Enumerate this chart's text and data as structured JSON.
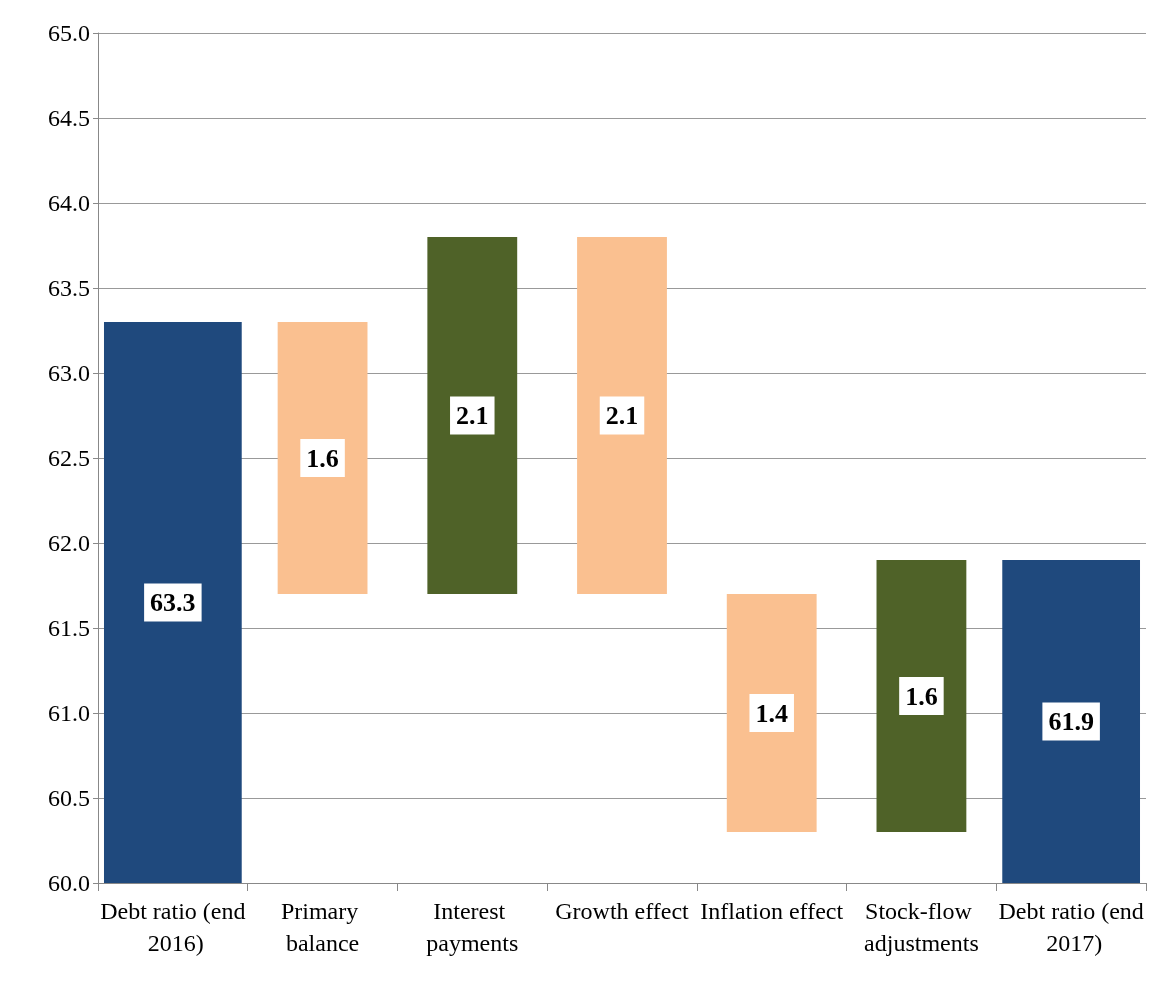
{
  "chart_data": {
    "type": "bar",
    "categories": [
      "Debt ratio (end 2016)",
      "Primary balance",
      "Interest payments",
      "Growth effect",
      "Inflation effect",
      "Stock-flow adjustments",
      "Debt ratio (end 2017)"
    ],
    "values": [
      63.3,
      -1.6,
      2.1,
      -2.1,
      -1.4,
      1.6,
      61.9
    ],
    "base": [
      null,
      63.3,
      61.7,
      63.8,
      61.7,
      60.3,
      null
    ],
    "colors": [
      "#1f497d",
      "#fac090",
      "#4f6228",
      "#fac090",
      "#fac090",
      "#4f6228",
      "#1f497d"
    ],
    "value_labels": [
      "63.3",
      "1.6",
      "2.1",
      "2.1",
      "1.4",
      "1.6",
      "61.9"
    ],
    "ylim": [
      60,
      65
    ],
    "yticks": [
      {
        "value": 60,
        "label": "60.0"
      },
      {
        "value": 60.5,
        "label": "60.5"
      },
      {
        "value": 61,
        "label": "61.0"
      },
      {
        "value": 61.5,
        "label": "61.5"
      },
      {
        "value": 62,
        "label": "62.0"
      },
      {
        "value": 62.5,
        "label": "62.5"
      },
      {
        "value": 63,
        "label": "63.0"
      },
      {
        "value": 63.5,
        "label": "63.5"
      },
      {
        "value": 64,
        "label": "64.0"
      },
      {
        "value": 64.5,
        "label": "64.5"
      },
      {
        "value": 65,
        "label": "65.0"
      }
    ],
    "grid": "y"
  }
}
